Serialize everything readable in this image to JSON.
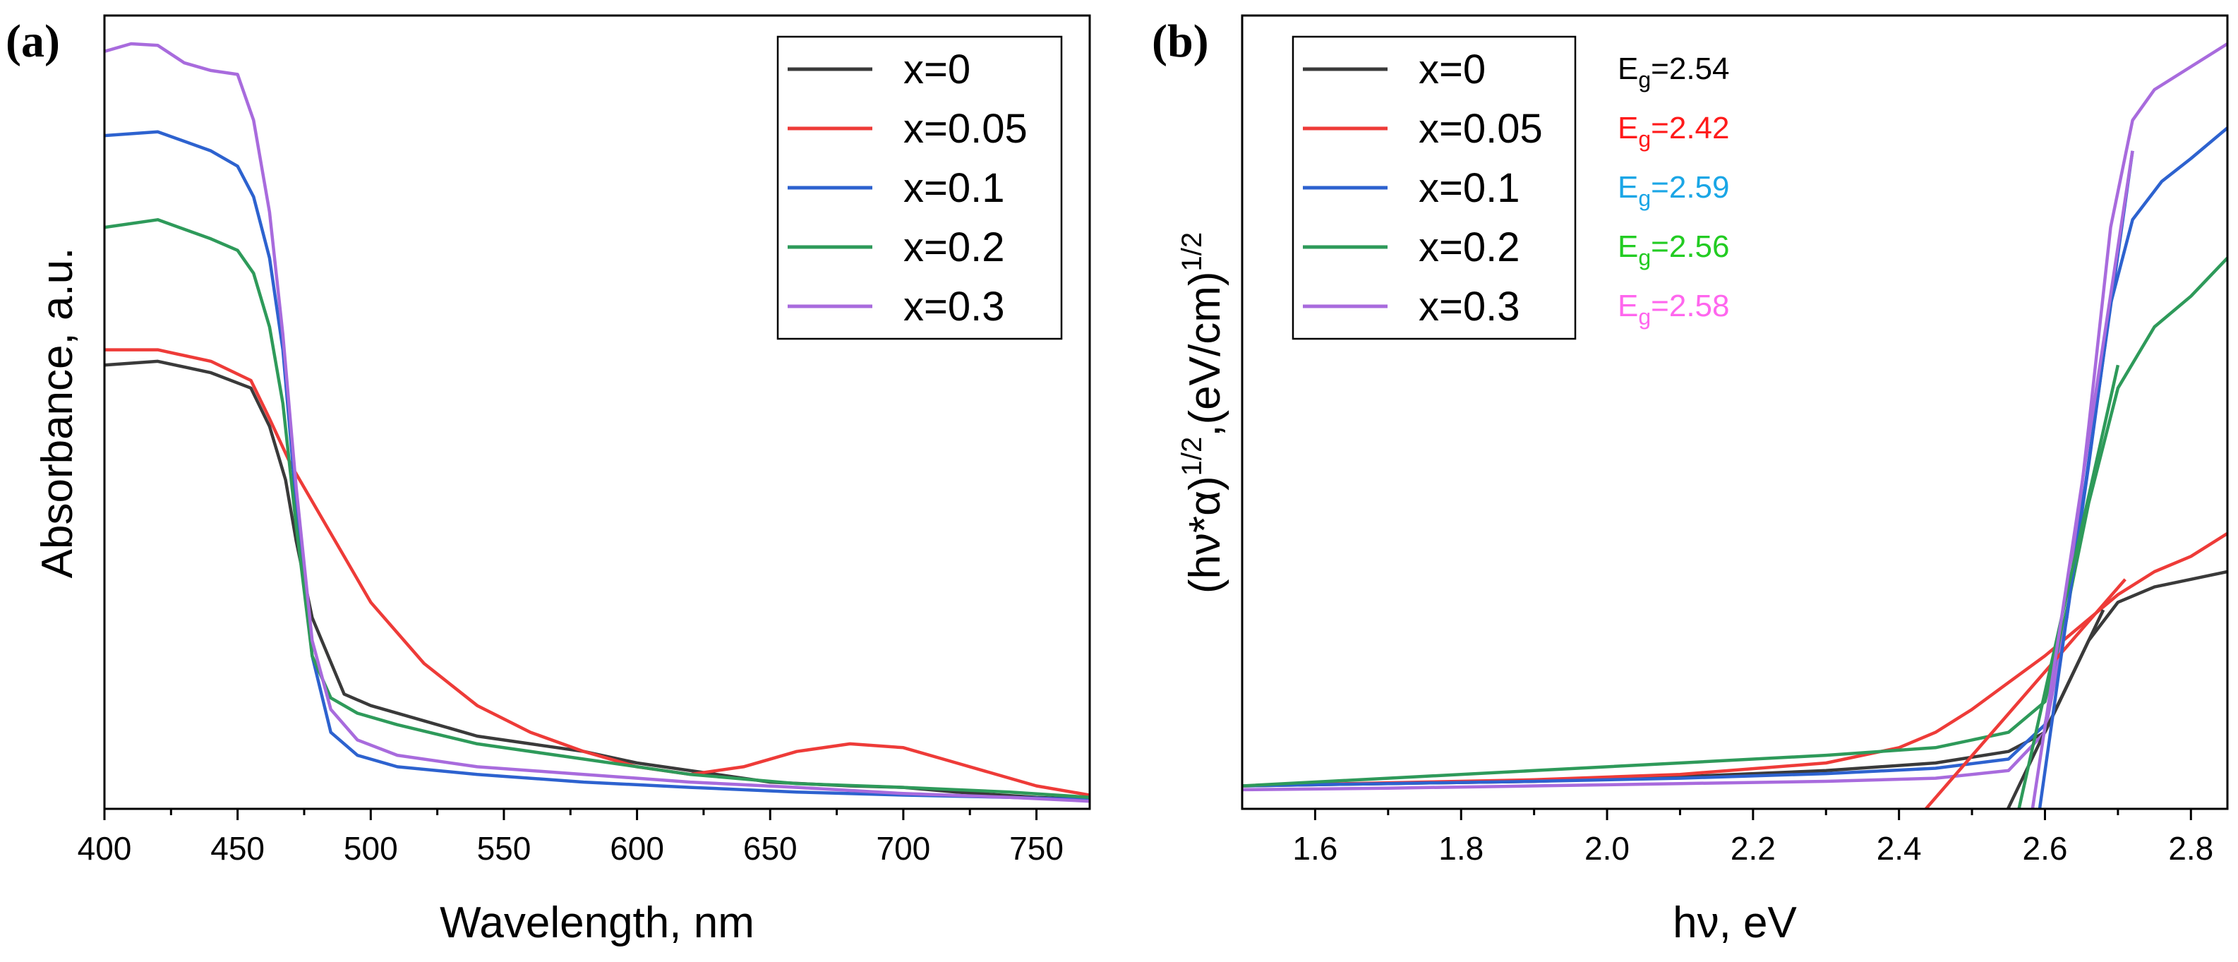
{
  "colors": {
    "x=0": "#3a3a3a",
    "x=0.05": "#ee3b38",
    "x=0.1": "#2d62cf",
    "x=0.2": "#2e9a5a",
    "x=0.3": "#a86bdd",
    "eg_x0": "#000000",
    "eg_x005": "#ff1a1a",
    "eg_x01": "#1aa6e6",
    "eg_x02": "#22cc22",
    "eg_x03": "#ff66ee"
  },
  "chart_data": [
    {
      "panel_label": "(a)",
      "type": "line",
      "title": "",
      "xlabel": "Wavelength, nm",
      "ylabel": "Absorbance, a.u.",
      "xlim": [
        400,
        770
      ],
      "ylim": [
        0,
        1
      ],
      "xticks": [
        400,
        450,
        500,
        550,
        600,
        650,
        700,
        750
      ],
      "xtick_labels": [
        "400",
        "450",
        "500",
        "550",
        "600",
        "650",
        "700",
        "750"
      ],
      "legend_position": "top-right",
      "series": [
        {
          "name": "x=0",
          "x": [
            400,
            420,
            440,
            455,
            462,
            468,
            472,
            478,
            490,
            500,
            520,
            540,
            560,
            580,
            600,
            620,
            650,
            680,
            700,
            720,
            750,
            770
          ],
          "y": [
            0.58,
            0.585,
            0.57,
            0.55,
            0.5,
            0.43,
            0.35,
            0.25,
            0.15,
            0.135,
            0.115,
            0.095,
            0.085,
            0.075,
            0.06,
            0.05,
            0.035,
            0.03,
            0.028,
            0.022,
            0.015,
            0.012
          ]
        },
        {
          "name": "x=0.05",
          "x": [
            400,
            420,
            440,
            455,
            462,
            470,
            480,
            490,
            500,
            520,
            540,
            560,
            580,
            600,
            620,
            640,
            660,
            680,
            700,
            720,
            750,
            770
          ],
          "y": [
            0.6,
            0.6,
            0.585,
            0.56,
            0.51,
            0.45,
            0.39,
            0.33,
            0.27,
            0.19,
            0.135,
            0.1,
            0.075,
            0.055,
            0.045,
            0.055,
            0.075,
            0.085,
            0.08,
            0.06,
            0.03,
            0.018
          ]
        },
        {
          "name": "x=0.1",
          "x": [
            400,
            420,
            440,
            450,
            456,
            462,
            467,
            472,
            478,
            485,
            495,
            510,
            540,
            580,
            620,
            660,
            700,
            740,
            770
          ],
          "y": [
            0.88,
            0.885,
            0.86,
            0.84,
            0.8,
            0.72,
            0.6,
            0.4,
            0.2,
            0.1,
            0.07,
            0.055,
            0.045,
            0.035,
            0.028,
            0.022,
            0.018,
            0.015,
            0.012
          ]
        },
        {
          "name": "x=0.2",
          "x": [
            400,
            420,
            440,
            450,
            456,
            462,
            467,
            472,
            478,
            485,
            495,
            510,
            540,
            580,
            620,
            660,
            700,
            740,
            770
          ],
          "y": [
            0.76,
            0.77,
            0.745,
            0.73,
            0.7,
            0.63,
            0.53,
            0.37,
            0.2,
            0.145,
            0.125,
            0.11,
            0.085,
            0.065,
            0.045,
            0.033,
            0.028,
            0.022,
            0.015
          ]
        },
        {
          "name": "x=0.3",
          "x": [
            400,
            410,
            420,
            430,
            440,
            450,
            456,
            462,
            467,
            472,
            478,
            485,
            495,
            510,
            540,
            580,
            620,
            660,
            700,
            740,
            770
          ],
          "y": [
            0.99,
            1.0,
            0.998,
            0.975,
            0.965,
            0.96,
            0.9,
            0.78,
            0.62,
            0.42,
            0.22,
            0.13,
            0.09,
            0.07,
            0.055,
            0.045,
            0.035,
            0.028,
            0.02,
            0.015,
            0.01
          ]
        }
      ]
    },
    {
      "panel_label": "(b)",
      "type": "line",
      "title": "",
      "xlabel": "hν, eV",
      "ylabel_parts": [
        "(hν*α)",
        "1/2",
        ",(eV/cm)",
        "1/2"
      ],
      "xlim": [
        1.5,
        2.85
      ],
      "ylim": [
        0,
        1
      ],
      "xticks": [
        1.6,
        1.8,
        2.0,
        2.2,
        2.4,
        2.6,
        2.8
      ],
      "xtick_labels": [
        "1.6",
        "1.8",
        "2.0",
        "2.2",
        "2.4",
        "2.6",
        "2.8"
      ],
      "legend_position": "top-left",
      "series": [
        {
          "name": "x=0",
          "x": [
            1.5,
            1.7,
            1.9,
            2.1,
            2.3,
            2.45,
            2.55,
            2.6,
            2.63,
            2.66,
            2.7,
            2.75,
            2.8,
            2.85
          ],
          "y": [
            0.03,
            0.033,
            0.036,
            0.042,
            0.05,
            0.06,
            0.075,
            0.1,
            0.16,
            0.22,
            0.27,
            0.29,
            0.3,
            0.31
          ]
        },
        {
          "name": "x=0.05",
          "x": [
            1.5,
            1.7,
            1.9,
            2.1,
            2.3,
            2.4,
            2.45,
            2.5,
            2.55,
            2.6,
            2.65,
            2.7,
            2.75,
            2.8,
            2.85
          ],
          "y": [
            0.03,
            0.034,
            0.038,
            0.045,
            0.06,
            0.08,
            0.1,
            0.13,
            0.165,
            0.2,
            0.24,
            0.28,
            0.31,
            0.33,
            0.36
          ]
        },
        {
          "name": "x=0.1",
          "x": [
            1.5,
            1.7,
            1.9,
            2.1,
            2.3,
            2.45,
            2.55,
            2.6,
            2.63,
            2.66,
            2.69,
            2.72,
            2.76,
            2.8,
            2.85
          ],
          "y": [
            0.03,
            0.033,
            0.036,
            0.04,
            0.046,
            0.053,
            0.065,
            0.11,
            0.25,
            0.45,
            0.66,
            0.77,
            0.82,
            0.85,
            0.89
          ]
        },
        {
          "name": "x=0.2",
          "x": [
            1.5,
            1.7,
            1.9,
            2.1,
            2.3,
            2.45,
            2.55,
            2.6,
            2.63,
            2.66,
            2.7,
            2.75,
            2.8,
            2.85
          ],
          "y": [
            0.03,
            0.04,
            0.05,
            0.06,
            0.07,
            0.08,
            0.1,
            0.14,
            0.26,
            0.4,
            0.55,
            0.63,
            0.67,
            0.72
          ]
        },
        {
          "name": "x=0.3",
          "x": [
            1.5,
            1.7,
            1.9,
            2.1,
            2.3,
            2.45,
            2.55,
            2.6,
            2.63,
            2.66,
            2.69,
            2.72,
            2.75,
            2.8,
            2.85
          ],
          "y": [
            0.025,
            0.027,
            0.03,
            0.033,
            0.036,
            0.04,
            0.05,
            0.1,
            0.25,
            0.5,
            0.76,
            0.9,
            0.94,
            0.97,
            1.0
          ]
        }
      ],
      "fit_lines": [
        {
          "name": "x=0",
          "x": [
            2.54,
            2.68
          ],
          "y": [
            0.0,
            0.26
          ]
        },
        {
          "name": "x=0.05",
          "x": [
            2.42,
            2.71
          ],
          "y": [
            0.0,
            0.3
          ]
        },
        {
          "name": "x=0.1",
          "x": [
            2.59,
            2.72
          ],
          "y": [
            0.0,
            0.86
          ]
        },
        {
          "name": "x=0.2",
          "x": [
            2.56,
            2.7
          ],
          "y": [
            0.0,
            0.58
          ]
        },
        {
          "name": "x=0.3",
          "x": [
            2.58,
            2.72
          ],
          "y": [
            0.0,
            0.86
          ]
        }
      ],
      "annotations": [
        {
          "base": "E",
          "sub": "g",
          "value": "=2.54",
          "color_key": "eg_x0"
        },
        {
          "base": "E",
          "sub": "g",
          "value": "=2.42",
          "color_key": "eg_x005"
        },
        {
          "base": "E",
          "sub": "g",
          "value": "=2.59",
          "color_key": "eg_x01"
        },
        {
          "base": "E",
          "sub": "g",
          "value": "=2.56",
          "color_key": "eg_x02"
        },
        {
          "base": "E",
          "sub": "g",
          "value": "=2.58",
          "color_key": "eg_x03"
        }
      ]
    }
  ]
}
